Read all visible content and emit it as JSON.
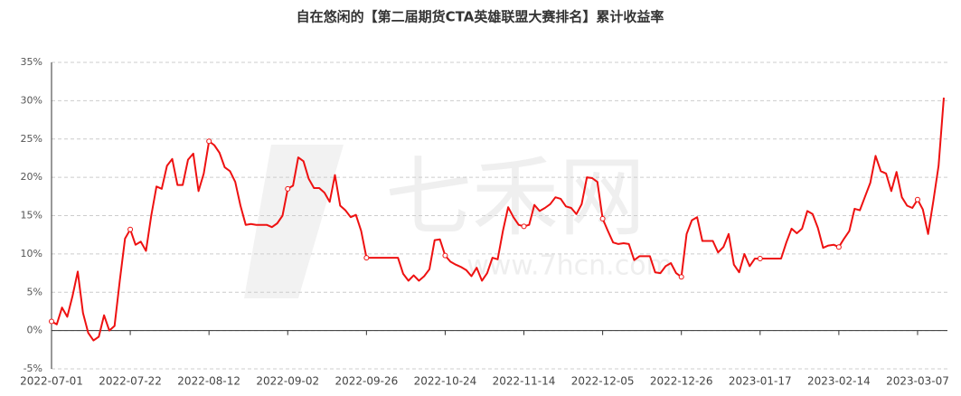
{
  "chart_data": {
    "type": "line",
    "title": "自在悠闲的【第二届期货CTA英雄联盟大赛排名】累计收益率",
    "watermark": {
      "brand": "七禾网",
      "url": "www.7hcn.com"
    },
    "categories": [
      "2022-07-01",
      null,
      null,
      null,
      null,
      null,
      null,
      null,
      null,
      null,
      null,
      null,
      null,
      null,
      null,
      "2022-07-22",
      null,
      null,
      null,
      null,
      null,
      null,
      null,
      null,
      null,
      null,
      null,
      null,
      null,
      null,
      "2022-08-12",
      null,
      null,
      null,
      null,
      null,
      null,
      null,
      null,
      null,
      null,
      null,
      null,
      null,
      null,
      "2022-09-02",
      null,
      null,
      null,
      null,
      null,
      null,
      null,
      null,
      null,
      null,
      null,
      null,
      null,
      null,
      "2022-09-26",
      null,
      null,
      null,
      null,
      null,
      null,
      null,
      null,
      null,
      null,
      null,
      null,
      null,
      null,
      "2022-10-24",
      null,
      null,
      null,
      null,
      null,
      null,
      null,
      null,
      null,
      null,
      null,
      null,
      null,
      null,
      "2022-11-14",
      null,
      null,
      null,
      null,
      null,
      null,
      null,
      null,
      null,
      null,
      null,
      null,
      null,
      null,
      "2022-12-05",
      null,
      null,
      null,
      null,
      null,
      null,
      null,
      null,
      null,
      null,
      null,
      null,
      null,
      null,
      "2022-12-26",
      null,
      null,
      null,
      null,
      null,
      null,
      null,
      null,
      null,
      null,
      null,
      null,
      null,
      null,
      "2023-01-17",
      null,
      null,
      null,
      null,
      null,
      null,
      null,
      null,
      null,
      null,
      null,
      null,
      null,
      null,
      "2023-02-14",
      null,
      null,
      null,
      null,
      null,
      null,
      null,
      null,
      null,
      null,
      null,
      null,
      null,
      null,
      "2023-03-07",
      null,
      null,
      null,
      null,
      null
    ],
    "series": [
      {
        "color": "#ee1111",
        "values": [
          1.2,
          0.8,
          3.0,
          1.8,
          4.5,
          7.7,
          2.3,
          -0.3,
          -1.3,
          -0.8,
          2.0,
          0.0,
          0.6,
          6.5,
          12.0,
          13.2,
          11.2,
          11.6,
          10.4,
          15.0,
          18.8,
          18.5,
          21.5,
          22.4,
          19.0,
          19.0,
          22.3,
          23.1,
          18.2,
          20.5,
          24.7,
          24.2,
          23.2,
          21.3,
          20.8,
          19.4,
          16.3,
          13.8,
          13.9,
          13.8,
          13.8,
          13.8,
          13.5,
          14.0,
          15.0,
          18.5,
          18.9,
          22.6,
          22.1,
          19.8,
          18.6,
          18.6,
          18.0,
          16.8,
          20.3,
          16.3,
          15.7,
          14.8,
          15.1,
          13.0,
          9.5,
          9.5,
          9.5,
          9.5,
          9.5,
          9.5,
          9.5,
          7.4,
          6.5,
          7.2,
          6.5,
          7.1,
          8.0,
          11.8,
          11.9,
          9.8,
          9.0,
          8.6,
          8.3,
          7.9,
          7.1,
          8.2,
          6.5,
          7.5,
          9.5,
          9.3,
          13.0,
          16.1,
          14.8,
          13.8,
          13.6,
          13.8,
          16.4,
          15.6,
          16.0,
          16.5,
          17.4,
          17.2,
          16.2,
          16.0,
          15.2,
          16.5,
          20.0,
          19.9,
          19.4,
          14.6,
          13.0,
          11.5,
          11.3,
          11.4,
          11.3,
          9.2,
          9.7,
          9.7,
          9.7,
          7.6,
          7.5,
          8.4,
          8.8,
          7.5,
          7.0,
          12.6,
          14.4,
          14.8,
          11.7,
          11.7,
          11.7,
          10.2,
          10.9,
          12.6,
          8.6,
          7.6,
          10.0,
          8.4,
          9.4,
          9.4,
          9.4,
          9.4,
          9.4,
          9.4,
          11.5,
          13.3,
          12.7,
          13.3,
          15.6,
          15.2,
          13.4,
          10.8,
          11.1,
          11.2,
          10.9,
          12.0,
          13.0,
          15.9,
          15.7,
          17.5,
          19.3,
          22.8,
          20.8,
          20.5,
          18.2,
          20.7,
          17.4,
          16.3,
          16.0,
          17.1,
          15.8,
          12.6,
          16.9,
          21.5,
          30.4
        ]
      }
    ],
    "ylim": [
      -5,
      35
    ],
    "yticks": [
      {
        "value": -5,
        "label": "-5%"
      },
      {
        "value": 0,
        "label": "0%"
      },
      {
        "value": 5,
        "label": "5%"
      },
      {
        "value": 10,
        "label": "10%"
      },
      {
        "value": 15,
        "label": "15%"
      },
      {
        "value": 20,
        "label": "20%"
      },
      {
        "value": 25,
        "label": "25%"
      },
      {
        "value": 30,
        "label": "30%"
      },
      {
        "value": 35,
        "label": "35%"
      }
    ],
    "grid": true
  }
}
